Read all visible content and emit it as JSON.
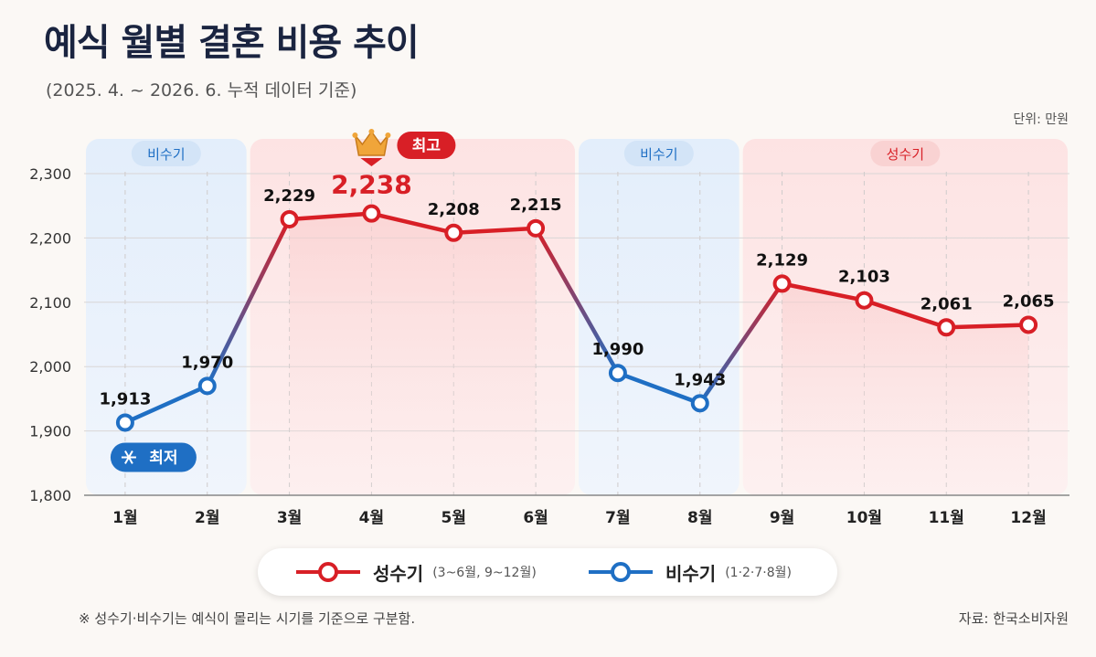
{
  "title": "예식 월별 결혼 비용 추이",
  "subtitle": "(2025. 4. ~ 2026. 6. 누적 데이터 기준)",
  "unit_label": "단위: 만원",
  "colors": {
    "peak_season": "#d81f26",
    "off_season": "#1f6fc4",
    "peak_band": "#fde8e8",
    "off_band": "#e6f0fb",
    "title": "#1a2440"
  },
  "chart_data": {
    "type": "line",
    "categories": [
      "1월",
      "2월",
      "3월",
      "4월",
      "5월",
      "6월",
      "7월",
      "8월",
      "9월",
      "10월",
      "11월",
      "12월"
    ],
    "series": [
      {
        "name": "성수기",
        "segments": [
          [
            2,
            3,
            4,
            5
          ],
          [
            8,
            9,
            10,
            11
          ]
        ],
        "months_note": "(3~6월, 9~12월)"
      },
      {
        "name": "비수기",
        "segments": [
          [
            0,
            1
          ],
          [
            6,
            7
          ]
        ],
        "months_note": "(1·2·7·8월)"
      }
    ],
    "values": [
      1913,
      1970,
      2229,
      2238,
      2208,
      2215,
      1990,
      1943,
      2129,
      2103,
      2061,
      2065
    ],
    "value_labels": [
      "1,913",
      "1,970",
      "2,229",
      "2,238",
      "2,208",
      "2,215",
      "1,990",
      "1,943",
      "2,129",
      "2,103",
      "2,061",
      "2,065"
    ],
    "ylim": [
      1800,
      2300
    ],
    "yticks": [
      1800,
      1900,
      2000,
      2100,
      2200,
      2300
    ],
    "ytick_labels": [
      "1,800",
      "1,900",
      "2,000",
      "2,100",
      "2,200",
      "2,300"
    ],
    "bands": [
      {
        "label": "비수기",
        "start": 0,
        "end": 1,
        "kind": "off"
      },
      {
        "label": "",
        "start": 2,
        "end": 5,
        "kind": "peak"
      },
      {
        "label": "비수기",
        "start": 6,
        "end": 7,
        "kind": "off"
      },
      {
        "label": "성수기",
        "start": 8,
        "end": 11,
        "kind": "peak"
      }
    ],
    "annotations": {
      "highest": {
        "label": "최고",
        "index": 3,
        "icon": "crown-icon"
      },
      "lowest": {
        "label": "최저",
        "index": 0,
        "icon": "snowflake-icon"
      }
    },
    "grid": true
  },
  "legend": [
    {
      "name": "성수기",
      "note": "(3~6월, 9~12월)",
      "kind": "peak"
    },
    {
      "name": "비수기",
      "note": "(1·2·7·8월)",
      "kind": "off"
    }
  ],
  "footnote": "※ 성수기·비수기는 예식이 몰리는 시기를 기준으로 구분함.",
  "source": "자료: 한국소비자원"
}
